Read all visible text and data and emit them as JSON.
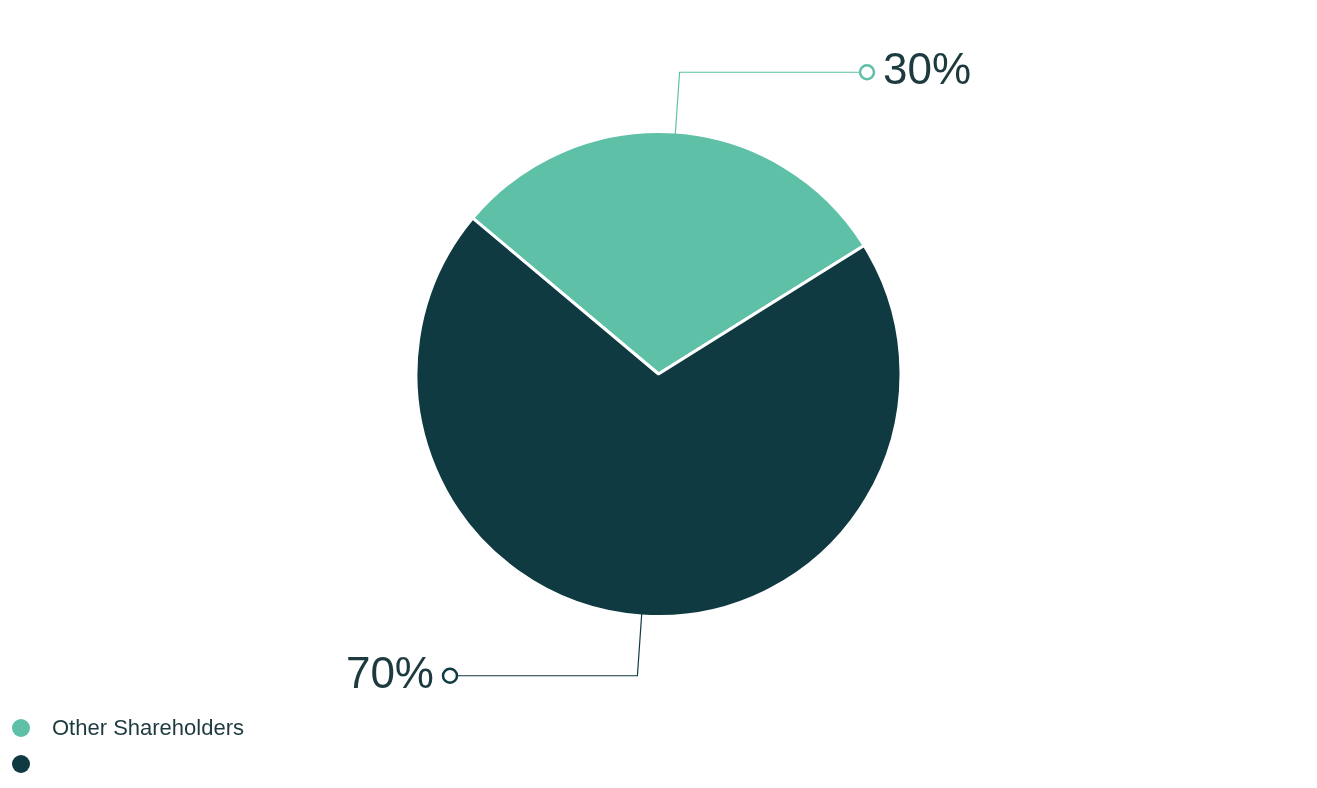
{
  "chart_data": {
    "type": "pie",
    "categories": [
      "Other Shareholders",
      null
    ],
    "values": [
      30,
      70
    ],
    "colors": [
      "#5fc0a8",
      "#0f3a42"
    ],
    "value_labels": [
      "30%",
      "70%"
    ],
    "legend": "bottom left"
  }
}
